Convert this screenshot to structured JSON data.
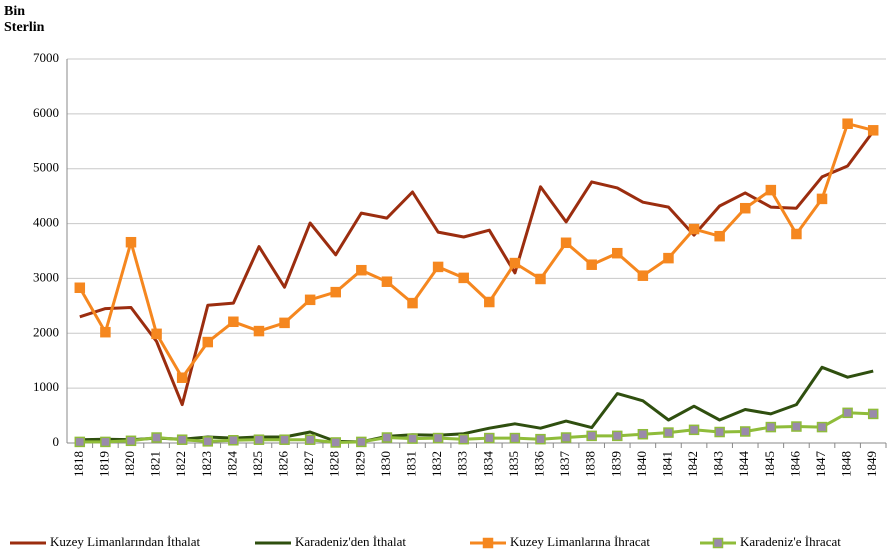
{
  "chart_data": {
    "type": "line",
    "y_axis_label": "Bin Sterlin",
    "categories": [
      "1818",
      "1819",
      "1820",
      "1821",
      "1822",
      "1823",
      "1824",
      "1825",
      "1826",
      "1827",
      "1828",
      "1829",
      "1830",
      "1831",
      "1832",
      "1833",
      "1834",
      "1835",
      "1836",
      "1837",
      "1838",
      "1839",
      "1840",
      "1841",
      "1842",
      "1843",
      "1844",
      "1845",
      "1846",
      "1847",
      "1848",
      "1849"
    ],
    "ylim": [
      0,
      7000
    ],
    "yticks": [
      0,
      1000,
      2000,
      3000,
      4000,
      5000,
      6000,
      7000
    ],
    "grid": true,
    "legend": "bottom",
    "series": [
      {
        "name": "Kuzey Limanlarından İthalat",
        "color": "#9b2d0f",
        "values": [
          2300,
          2450,
          2470,
          1850,
          700,
          2510,
          2550,
          3580,
          2840,
          4010,
          3430,
          4190,
          4100,
          4575,
          3845,
          3755,
          3880,
          3100,
          4670,
          4030,
          4760,
          4650,
          4390,
          4300,
          3790,
          4320,
          4560,
          4300,
          4280,
          4850,
          5050,
          5680
        ]
      },
      {
        "name": "Karadeniz'den İthalat",
        "color": "#2f4f0f",
        "values": [
          60,
          70,
          60,
          90,
          70,
          110,
          90,
          110,
          110,
          200,
          30,
          20,
          120,
          150,
          140,
          170,
          270,
          350,
          270,
          400,
          280,
          900,
          770,
          420,
          670,
          420,
          610,
          530,
          700,
          1380,
          1200,
          1310
        ]
      },
      {
        "name": "Kuzey Limanlarına İhracat",
        "color": "#f5871f",
        "marker": "square",
        "marker_color": "#f5871f",
        "values": [
          2830,
          2020,
          3660,
          1990,
          1190,
          1840,
          2210,
          2040,
          2190,
          2610,
          2750,
          3150,
          2940,
          2550,
          3210,
          3010,
          2570,
          3280,
          2990,
          3650,
          3250,
          3460,
          3050,
          3370,
          3900,
          3770,
          4280,
          4610,
          3810,
          4450,
          5820,
          5700
        ]
      },
      {
        "name": "Karadeniz'e İhracat",
        "color": "#8fbc3a",
        "marker": "square",
        "marker_color": "#9a8aab",
        "values": [
          20,
          20,
          40,
          100,
          60,
          30,
          50,
          60,
          60,
          60,
          10,
          20,
          100,
          80,
          90,
          70,
          90,
          90,
          70,
          100,
          130,
          130,
          160,
          190,
          240,
          200,
          210,
          290,
          300,
          290,
          550,
          530
        ]
      }
    ]
  }
}
